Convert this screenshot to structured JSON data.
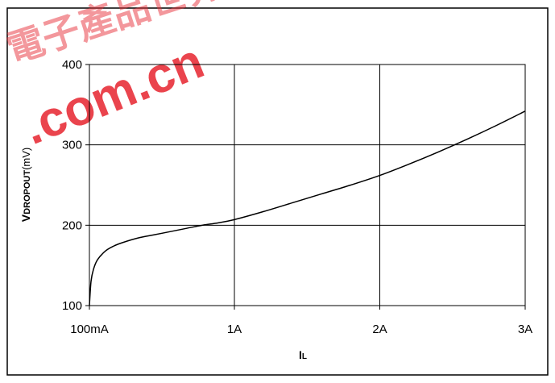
{
  "chart_data": {
    "type": "line",
    "title": "",
    "xlabel": "IL",
    "xlabel_main": "I",
    "xlabel_sub": "L",
    "ylabel": "VDROPOUT(mV)",
    "ylabel_lead": "V",
    "ylabel_sub": "DROPOUT",
    "ylabel_unit": "(mV)",
    "x_unit": "A",
    "xlim": [
      0.1,
      3
    ],
    "ylim": [
      100,
      400
    ],
    "grid": true,
    "legend": "none",
    "x_ticks": [
      {
        "value": 0.1,
        "label": "100mA"
      },
      {
        "value": 1,
        "label": "1A"
      },
      {
        "value": 2,
        "label": "2A"
      },
      {
        "value": 3,
        "label": "3A"
      }
    ],
    "y_ticks": [
      {
        "value": 100,
        "label": "100"
      },
      {
        "value": 200,
        "label": "200"
      },
      {
        "value": 300,
        "label": "300"
      },
      {
        "value": 400,
        "label": "400"
      }
    ],
    "series": [
      {
        "color": "#000000",
        "x": [
          0.1,
          0.11,
          0.125,
          0.15,
          0.2,
          0.25,
          0.3,
          0.4,
          0.5,
          0.6,
          0.7,
          0.8,
          0.9,
          1.0,
          1.2,
          1.4,
          1.6,
          1.8,
          2.0,
          2.2,
          2.4,
          2.6,
          2.8,
          3.0
        ],
        "y": [
          100,
          130,
          145,
          157,
          168,
          174,
          178,
          184,
          188,
          192,
          196,
          200,
          203,
          207,
          217,
          228,
          239,
          250,
          262,
          276,
          291,
          307,
          324,
          342
        ]
      }
    ]
  },
  "watermark": {
    "text": ".com.cn",
    "chars": "電子產品世界",
    "color": "#e8303a"
  }
}
